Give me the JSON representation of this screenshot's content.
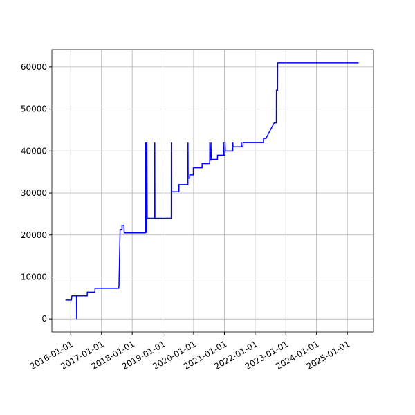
{
  "chart_data": {
    "type": "line",
    "x": [
      "2015-11-01",
      "2016-01-10",
      "2016-01-15",
      "2016-03-10",
      "2016-03-12",
      "2016-03-14",
      "2016-07-15",
      "2016-07-16",
      "2016-10-15",
      "2016-10-16",
      "2017-07-25",
      "2017-07-28",
      "2017-08-10",
      "2017-09-01",
      "2017-09-02",
      "2017-09-25",
      "2017-09-28",
      "2018-06-05",
      "2018-06-06",
      "2018-06-08",
      "2018-06-10",
      "2018-06-14",
      "2018-06-16",
      "2018-06-22",
      "2018-06-24",
      "2018-06-28",
      "2018-09-25",
      "2018-09-26",
      "2018-09-28",
      "2019-04-10",
      "2019-04-11",
      "2019-04-14",
      "2019-07-10",
      "2019-07-11",
      "2019-10-25",
      "2019-10-26",
      "2019-10-28",
      "2019-11-15",
      "2019-11-16",
      "2019-12-28",
      "2019-12-29",
      "2020-04-10",
      "2020-04-11",
      "2020-07-10",
      "2020-07-11",
      "2020-07-14",
      "2020-07-24",
      "2020-07-25",
      "2020-07-28",
      "2020-10-10",
      "2020-10-11",
      "2020-12-20",
      "2020-12-21",
      "2020-12-24",
      "2021-01-08",
      "2021-01-09",
      "2021-01-12",
      "2021-04-10",
      "2021-04-11",
      "2021-04-14",
      "2021-07-20",
      "2021-07-21",
      "2021-07-24",
      "2021-08-10",
      "2021-08-11",
      "2022-04-10",
      "2022-04-11",
      "2022-05-10",
      "2022-08-15",
      "2022-09-10",
      "2022-09-11",
      "2022-09-25",
      "2022-09-26",
      "2025-05-15"
    ],
    "series": [
      {
        "color": "#0000ff",
        "values": [
          4500,
          4500,
          5500,
          5500,
          0,
          5500,
          5500,
          6400,
          6400,
          7300,
          7300,
          8000,
          21300,
          21300,
          22300,
          22300,
          20500,
          20500,
          42000,
          20500,
          42000,
          20500,
          42000,
          20500,
          42000,
          24000,
          24000,
          42000,
          24000,
          24000,
          42000,
          30300,
          30300,
          32000,
          32000,
          42000,
          33500,
          33500,
          34300,
          34300,
          36000,
          36000,
          37000,
          37000,
          42000,
          37800,
          37800,
          42000,
          38000,
          38000,
          39000,
          39000,
          42000,
          39000,
          39000,
          42000,
          40000,
          40000,
          42000,
          41000,
          41000,
          42000,
          41000,
          41000,
          42000,
          42000,
          43000,
          43000,
          46700,
          46700,
          54500,
          54500,
          61000,
          61000
        ]
      }
    ],
    "xlim": [
      "2015-05-22",
      "2025-11-08"
    ],
    "xticks": [
      "2016-01-01",
      "2017-01-01",
      "2018-01-01",
      "2019-01-01",
      "2020-01-01",
      "2021-01-01",
      "2022-01-01",
      "2023-01-01",
      "2024-01-01",
      "2025-01-01"
    ],
    "ylim": [
      -3100,
      64100
    ],
    "yticks": [
      0,
      10000,
      20000,
      30000,
      40000,
      50000,
      60000
    ],
    "grid": true
  }
}
